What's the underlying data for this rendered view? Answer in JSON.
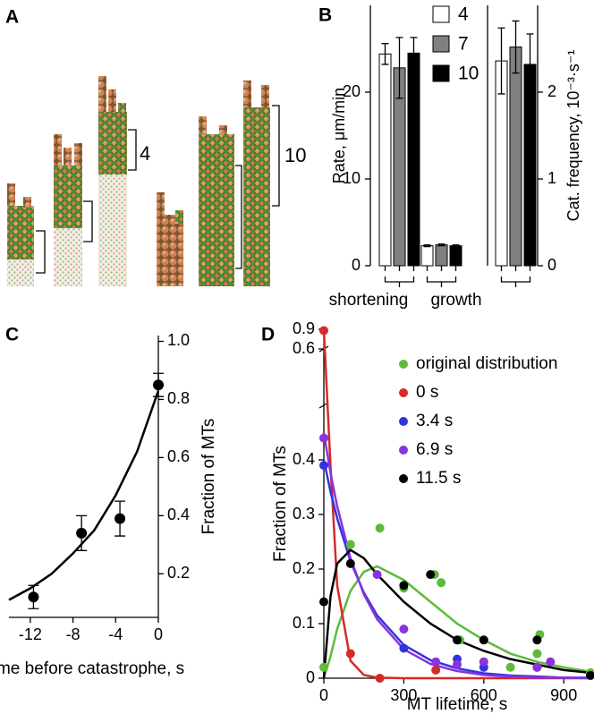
{
  "panel_a": {
    "label": "A",
    "brackets": [
      "4",
      "10"
    ]
  },
  "chart_data": [
    {
      "type": "bar",
      "label": "B",
      "ylabel": "Rate, μm/min",
      "categories": [
        "shortening",
        "growth"
      ],
      "series": [
        {
          "name": "4",
          "color": "#ffffff",
          "values": [
            24.4,
            2.3
          ],
          "errors": [
            1.2,
            0.1
          ]
        },
        {
          "name": "7",
          "color": "#808080",
          "values": [
            22.8,
            2.4
          ],
          "errors": [
            3.5,
            0.1
          ]
        },
        {
          "name": "10",
          "color": "#000000",
          "values": [
            24.5,
            2.3
          ],
          "errors": [
            1.8,
            0.1
          ]
        }
      ],
      "ylim": [
        0,
        30
      ],
      "yticks": [
        0,
        10,
        20
      ]
    },
    {
      "type": "bar",
      "ylabel": "Cat. frequency, 10⁻³·s⁻¹",
      "series": [
        {
          "color": "#ffffff",
          "values": [
            2.36
          ],
          "errors": [
            0.38
          ]
        },
        {
          "color": "#808080",
          "values": [
            2.52
          ],
          "errors": [
            0.3
          ]
        },
        {
          "color": "#000000",
          "values": [
            2.32
          ],
          "errors": [
            0.35
          ]
        }
      ],
      "ylim": [
        0,
        3
      ],
      "yticks": [
        0,
        1,
        2
      ]
    },
    {
      "type": "scatter",
      "label": "C",
      "xlabel": "Time before catastrophe, s",
      "ylabel": "Fraction of MTs",
      "xlim": [
        -14,
        0
      ],
      "xticks": [
        -12,
        -8,
        -4,
        0
      ],
      "ylim": [
        0.05,
        1.02
      ],
      "yticks": [
        0.2,
        0.4,
        0.6,
        0.8,
        {
          "value": 1,
          "label": "1.0"
        }
      ],
      "fit_x": [
        -14,
        -12,
        -10,
        -8,
        -6,
        -4,
        -2,
        0
      ],
      "series": [
        {
          "color": "#000000",
          "x": [
            -11.7,
            -7.2,
            -3.6,
            0
          ],
          "values": [
            0.12,
            0.34,
            0.39,
            0.85
          ],
          "errors": [
            0.04,
            0.06,
            0.06,
            0.04
          ],
          "fit": [
            0.11,
            0.15,
            0.2,
            0.27,
            0.35,
            0.47,
            0.62,
            0.83
          ]
        }
      ]
    },
    {
      "type": "scatter",
      "label": "D",
      "xlabel": "MT lifetime, s",
      "ylabel": "Fraction of MTs",
      "xlim": [
        0,
        1000
      ],
      "xticks": [
        0,
        300,
        600,
        900
      ],
      "ylim": [
        0,
        0.9
      ],
      "ybreak": [
        0.5,
        0.6
      ],
      "yticks": [
        0,
        0.1,
        0.2,
        0.3,
        0.4,
        0.6,
        0.9
      ],
      "fit_x": [
        0,
        25,
        50,
        100,
        150,
        200,
        300,
        400,
        500,
        600,
        700,
        800,
        900,
        1000
      ],
      "series": [
        {
          "name": "original distribution",
          "color": "#5dbb3a",
          "x": [
            0,
            100,
            210,
            300,
            415,
            440,
            510,
            600,
            700,
            800,
            810,
            1000
          ],
          "values": [
            0.02,
            0.245,
            0.275,
            0.165,
            0.19,
            0.175,
            0.07,
            0.03,
            0.02,
            0.045,
            0.08,
            0.01
          ],
          "fit": [
            0,
            0.04,
            0.09,
            0.16,
            0.195,
            0.205,
            0.18,
            0.14,
            0.1,
            0.07,
            0.045,
            0.03,
            0.02,
            0.012
          ]
        },
        {
          "name": "0 s",
          "color": "#d42a2a",
          "x": [
            0,
            100,
            210,
            420
          ],
          "values": [
            0.88,
            0.045,
            0,
            0.015
          ],
          "fit": [
            0.9,
            0.39,
            0.17,
            0.032,
            0.006,
            0.001,
            0,
            0,
            0,
            0,
            0,
            0,
            0,
            0
          ]
        },
        {
          "name": "3.4 s",
          "color": "#3333dd",
          "x": [
            0,
            300,
            500,
            600,
            800
          ],
          "values": [
            0.39,
            0.055,
            0.035,
            0.02,
            0.02
          ],
          "fit": [
            0.4,
            0.342,
            0.293,
            0.214,
            0.157,
            0.115,
            0.061,
            0.033,
            0.018,
            0.009,
            0.005,
            0.003,
            0.001,
            0.001
          ]
        },
        {
          "name": "6.9 s",
          "color": "#8833dd",
          "x": [
            0,
            200,
            300,
            420,
            500,
            600,
            800,
            850
          ],
          "values": [
            0.44,
            0.19,
            0.09,
            0.03,
            0.025,
            0.03,
            0.02,
            0.03
          ],
          "fit": [
            0.45,
            0.376,
            0.315,
            0.22,
            0.154,
            0.108,
            0.053,
            0.026,
            0.013,
            0.006,
            0.003,
            0.001,
            0.001,
            0
          ]
        },
        {
          "name": "11.5 s",
          "color": "#000000",
          "x": [
            0,
            100,
            300,
            400,
            500,
            600,
            800,
            1000
          ],
          "values": [
            0.14,
            0.21,
            0.17,
            0.19,
            0.07,
            0.07,
            0.07,
            0.005
          ],
          "fit": [
            0,
            0.15,
            0.21,
            0.235,
            0.22,
            0.19,
            0.14,
            0.1,
            0.07,
            0.05,
            0.035,
            0.025,
            0.015,
            0.01
          ]
        }
      ]
    }
  ]
}
